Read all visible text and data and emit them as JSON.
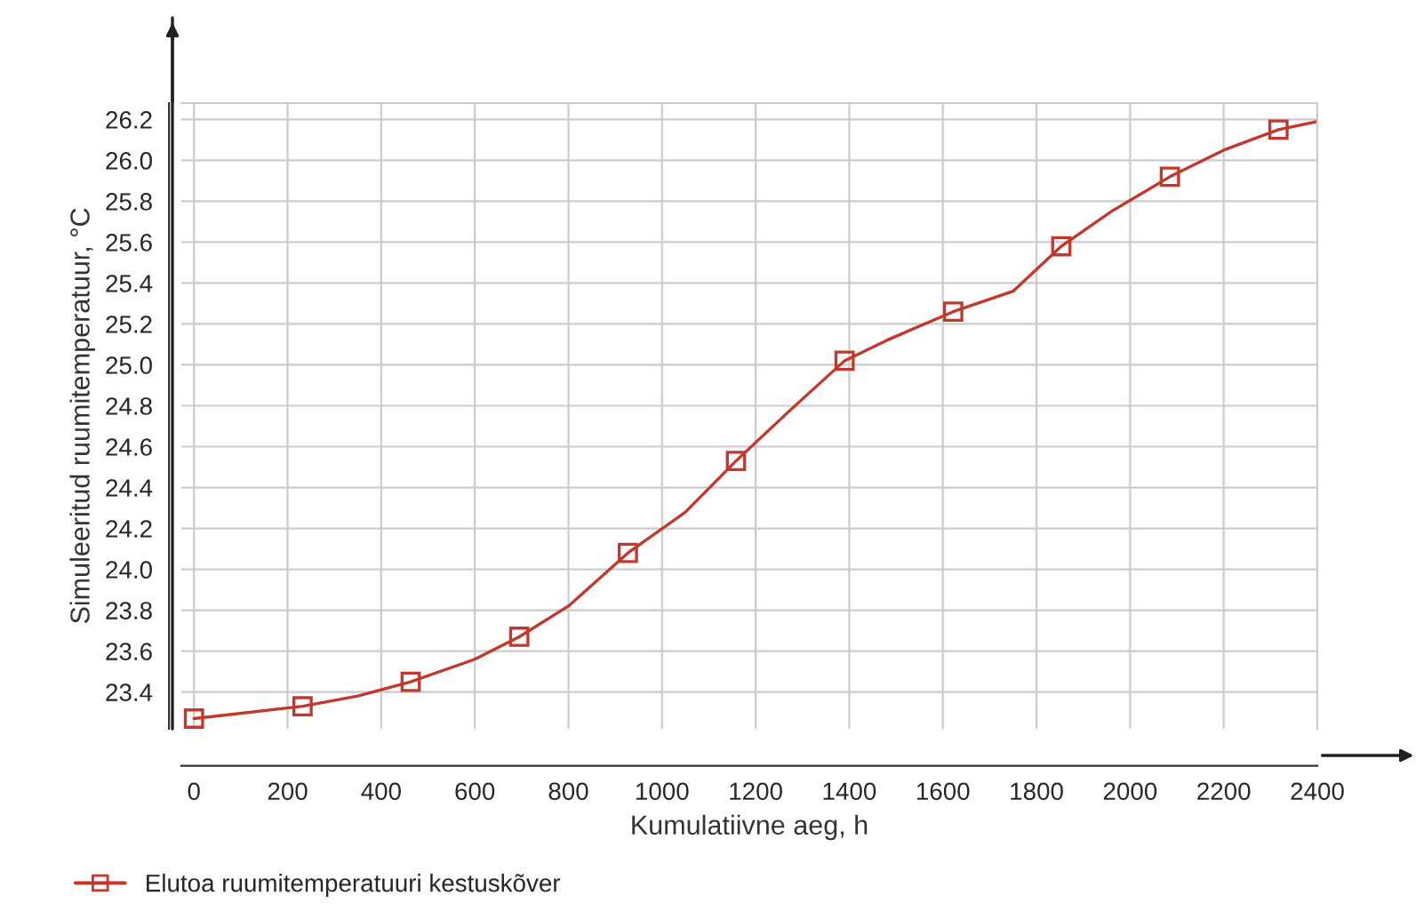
{
  "chart_data": {
    "type": "line",
    "xlabel": "Kumulatiivne aeg, h",
    "ylabel": "Simuleeritud ruumitemperatuur, °C",
    "series": [
      {
        "name": "Elutoa ruumitemperatuuri kestuskõver",
        "color": "#c0392b",
        "marker": "none",
        "x": [
          0,
          232,
          350,
          463,
          600,
          695,
          800,
          927,
          1050,
          1158,
          1270,
          1390,
          1480,
          1622,
          1750,
          1853,
          1960,
          2085,
          2200,
          2317,
          2400
        ],
        "values": [
          23.27,
          23.33,
          23.38,
          23.45,
          23.56,
          23.67,
          23.82,
          24.08,
          24.28,
          24.53,
          24.77,
          25.02,
          25.12,
          25.26,
          25.36,
          25.58,
          25.75,
          25.92,
          26.05,
          26.15,
          26.19
        ]
      },
      {
        "type": "scatter",
        "color": "#c0392b",
        "marker": "square",
        "x": [
          0,
          232,
          463,
          695,
          927,
          1158,
          1390,
          1622,
          1853,
          2085,
          2317
        ],
        "values": [
          23.27,
          23.33,
          23.45,
          23.67,
          24.08,
          24.53,
          25.02,
          25.26,
          25.58,
          25.92,
          26.15
        ]
      }
    ],
    "xlim": [
      -27,
      2400
    ],
    "ylim": [
      23.22,
      26.28
    ],
    "xticks": [
      0,
      200,
      400,
      600,
      800,
      1000,
      1200,
      1400,
      1600,
      1800,
      2000,
      2200,
      2400
    ],
    "yticks": [
      23.4,
      23.6,
      23.8,
      {
        "value": 24,
        "label": "24.0"
      },
      24.2,
      24.4,
      24.6,
      24.8,
      {
        "value": 25,
        "label": "25.0"
      },
      25.2,
      25.4,
      25.6,
      25.8,
      {
        "value": 26,
        "label": "26.0"
      },
      26.2
    ],
    "grid": true,
    "legend": "bottom left",
    "line_style": "solid"
  }
}
